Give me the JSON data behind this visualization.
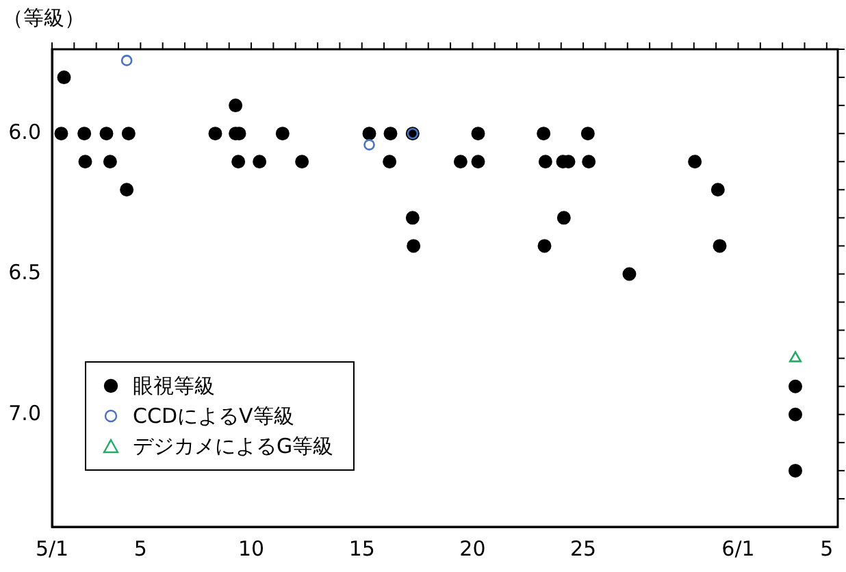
{
  "chart_data": {
    "type": "scatter",
    "ylabel": "（等級）",
    "legend": "bottom left",
    "xlim": [
      "--05-01",
      "--06-05T12:00"
    ],
    "xticks": [
      {
        "value": "--05-01",
        "label": "5/1"
      },
      {
        "value": "--05-02",
        "label": null
      },
      {
        "value": "--05-03",
        "label": null
      },
      {
        "value": "--05-04",
        "label": null
      },
      {
        "value": "--05-05",
        "label": "5"
      },
      {
        "value": "--05-06",
        "label": null
      },
      {
        "value": "--05-07",
        "label": null
      },
      {
        "value": "--05-08",
        "label": null
      },
      {
        "value": "--05-09",
        "label": null
      },
      {
        "value": "--05-10",
        "label": "10"
      },
      {
        "value": "--05-11",
        "label": null
      },
      {
        "value": "--05-12",
        "label": null
      },
      {
        "value": "--05-13",
        "label": null
      },
      {
        "value": "--05-14",
        "label": null
      },
      {
        "value": "--05-15",
        "label": "15"
      },
      {
        "value": "--05-16",
        "label": null
      },
      {
        "value": "--05-17",
        "label": null
      },
      {
        "value": "--05-18",
        "label": null
      },
      {
        "value": "--05-19",
        "label": null
      },
      {
        "value": "--05-20",
        "label": "20"
      },
      {
        "value": "--05-21",
        "label": null
      },
      {
        "value": "--05-22",
        "label": null
      },
      {
        "value": "--05-23",
        "label": null
      },
      {
        "value": "--05-24",
        "label": null
      },
      {
        "value": "--05-25",
        "label": "25"
      },
      {
        "value": "--05-26",
        "label": null
      },
      {
        "value": "--05-27",
        "label": null
      },
      {
        "value": "--05-28",
        "label": null
      },
      {
        "value": "--05-29",
        "label": null
      },
      {
        "value": "--05-30",
        "label": null
      },
      {
        "value": "--05-31",
        "label": null
      },
      {
        "value": "--06-01",
        "label": "6/1"
      },
      {
        "value": "--06-02",
        "label": null
      },
      {
        "value": "--06-03",
        "label": null
      },
      {
        "value": "--06-04",
        "label": null
      },
      {
        "value": "--06-05",
        "label": "5"
      }
    ],
    "ylim": [
      7.4,
      5.7
    ],
    "yticks": [
      {
        "value": 5.7,
        "label": null
      },
      {
        "value": 5.8,
        "label": null
      },
      {
        "value": 5.9,
        "label": null
      },
      {
        "value": 6.0,
        "label": "6.0"
      },
      {
        "value": 6.1,
        "label": null
      },
      {
        "value": 6.2,
        "label": null
      },
      {
        "value": 6.3,
        "label": null
      },
      {
        "value": 6.4,
        "label": null
      },
      {
        "value": 6.5,
        "label": "6.5"
      },
      {
        "value": 6.6,
        "label": null
      },
      {
        "value": 6.7,
        "label": null
      },
      {
        "value": 6.8,
        "label": null
      },
      {
        "value": 6.9,
        "label": null
      },
      {
        "value": 7.0,
        "label": "7.0"
      },
      {
        "value": 7.1,
        "label": null
      },
      {
        "value": 7.2,
        "label": null
      },
      {
        "value": 7.3,
        "label": null
      }
    ],
    "series": [
      {
        "name": "眼視等級",
        "color": "#000000",
        "marker": "circle",
        "x": [
          "--05-01T13:00",
          "--05-01T10:00",
          "--05-02T11:00",
          "--05-02T12:00",
          "--05-03T11:00",
          "--05-03T15:00",
          "--05-04T11:00",
          "--05-04T09:00",
          "--05-08T09:00",
          "--05-09T07:00",
          "--05-09T07:00",
          "--05-09T11:00",
          "--05-09T10:00",
          "--05-10T09:00",
          "--05-11T10:00",
          "--05-12T07:00",
          "--05-15T08:00",
          "--05-16T07:00",
          "--05-16T06:00",
          "--05-17T07:00",
          "--05-17T07:00",
          "--05-17T08:00",
          "--05-19T11:00",
          "--05-20T06:00",
          "--05-20T06:00",
          "--05-23T05:00",
          "--05-23T07:00",
          "--05-23T06:00",
          "--05-24T03:00",
          "--05-24T02:00",
          "--05-24T08:00",
          "--05-25T05:00",
          "--05-25T06:00",
          "--05-27T02:00",
          "--05-30T01:00",
          "--05-31T02:00",
          "--05-31T04:00",
          "--06-03T14:00",
          "--06-03T14:00",
          "--06-03T14:00"
        ],
        "values": [
          5.8,
          6.0,
          6.0,
          6.1,
          6.0,
          6.1,
          6.0,
          6.2,
          6.0,
          5.9,
          6.0,
          6.0,
          6.1,
          6.1,
          6.0,
          6.1,
          6.0,
          6.0,
          6.1,
          6.0,
          6.3,
          6.4,
          6.1,
          6.0,
          6.1,
          6.0,
          6.1,
          6.4,
          6.3,
          6.1,
          6.1,
          6.0,
          6.1,
          6.5,
          6.1,
          6.2,
          6.4,
          6.9,
          7.0,
          7.2
        ]
      },
      {
        "name": "CCDによるV等級",
        "color": "#4a72c4",
        "marker": "circle",
        "x": [
          "--05-04T09:00",
          "--05-15T08:00",
          "--05-17T07:00"
        ],
        "values": [
          5.74,
          6.04,
          6.0
        ]
      },
      {
        "name": "デジカメによるG等級",
        "color": "#22aa66",
        "marker": "triangle",
        "x": [
          "--06-03T14:00"
        ],
        "values": [
          6.8
        ]
      }
    ]
  }
}
